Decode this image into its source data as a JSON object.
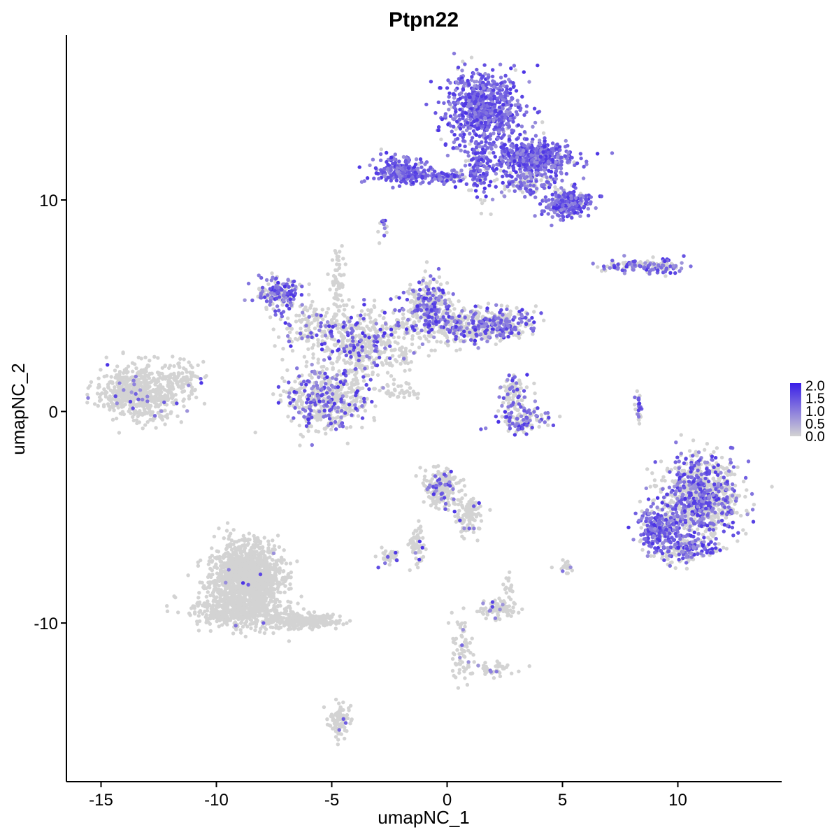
{
  "chart_data": {
    "type": "scatter",
    "title": "Ptpn22",
    "xlabel": "umapNC_1",
    "ylabel": "umapNC_2",
    "xlim": [
      -16.5,
      14.5
    ],
    "ylim": [
      -17.5,
      17.8
    ],
    "x_ticks": [
      -15,
      -10,
      -5,
      0,
      5,
      10
    ],
    "x_tick_labels": [
      "-15",
      "-10",
      "-5",
      "0",
      "5",
      "10"
    ],
    "y_ticks": [
      -10,
      0,
      10
    ],
    "y_tick_labels": [
      "-10",
      "0",
      "10"
    ],
    "grid": false,
    "legend": {
      "placement": "right",
      "type": "colorbar",
      "range": [
        0,
        2.1
      ],
      "ticks": [
        0.0,
        0.5,
        1.0,
        1.5,
        2.0
      ],
      "tick_labels": [
        "0.0",
        "0.5",
        "1.0",
        "1.5",
        "2.0"
      ],
      "low_color": "#d3d3d3",
      "high_color": "#3a1fe8"
    },
    "point_color_low": "#d3d3d3",
    "point_color_high": "#3a1fe8",
    "clusters": [
      {
        "cx": 1.6,
        "cy": 14.3,
        "sx": 1.0,
        "sy": 1.1,
        "n": 700,
        "expr": 0.95
      },
      {
        "cx": 3.7,
        "cy": 12.0,
        "sx": 1.1,
        "sy": 0.55,
        "n": 520,
        "expr": 0.9
      },
      {
        "cx": 5.2,
        "cy": 9.8,
        "sx": 0.65,
        "sy": 0.4,
        "n": 240,
        "expr": 0.85
      },
      {
        "cx": -2.0,
        "cy": 11.4,
        "sx": 0.7,
        "sy": 0.4,
        "n": 220,
        "expr": 0.95
      },
      {
        "cx": -0.2,
        "cy": 11.1,
        "sx": 1.0,
        "sy": 0.18,
        "n": 120,
        "expr": 0.85
      },
      {
        "cx": 1.4,
        "cy": 11.6,
        "sx": 0.35,
        "sy": 1.0,
        "n": 120,
        "expr": 0.7
      },
      {
        "cx": 3.5,
        "cy": 10.7,
        "sx": 0.8,
        "sy": 0.35,
        "n": 110,
        "expr": 0.5
      },
      {
        "cx": -2.8,
        "cy": 8.6,
        "sx": 0.15,
        "sy": 0.35,
        "n": 12,
        "expr": 0.5
      },
      {
        "cx": -7.3,
        "cy": 5.6,
        "sx": 0.55,
        "sy": 0.45,
        "n": 180,
        "expr": 0.55
      },
      {
        "cx": -5.5,
        "cy": 3.9,
        "sx": 1.2,
        "sy": 0.8,
        "n": 220,
        "expr": 0.28
      },
      {
        "cx": -4.8,
        "cy": 6.2,
        "sx": 0.2,
        "sy": 1.0,
        "n": 60,
        "expr": 0.0
      },
      {
        "cx": -3.0,
        "cy": 3.3,
        "sx": 1.2,
        "sy": 0.9,
        "n": 320,
        "expr": 0.15
      },
      {
        "cx": -0.8,
        "cy": 5.1,
        "sx": 0.7,
        "sy": 0.8,
        "n": 280,
        "expr": 0.45
      },
      {
        "cx": 0.5,
        "cy": 4.0,
        "sx": 1.2,
        "sy": 0.5,
        "n": 300,
        "expr": 0.3
      },
      {
        "cx": 2.4,
        "cy": 4.2,
        "sx": 0.9,
        "sy": 0.45,
        "n": 220,
        "expr": 0.45
      },
      {
        "cx": -5.2,
        "cy": 0.6,
        "sx": 1.1,
        "sy": 0.9,
        "n": 480,
        "expr": 0.3
      },
      {
        "cx": -4.0,
        "cy": 2.4,
        "sx": 0.5,
        "sy": 0.8,
        "n": 90,
        "expr": 0.2
      },
      {
        "cx": -2.0,
        "cy": 1.0,
        "sx": 0.7,
        "sy": 0.3,
        "n": 40,
        "expr": 0.0
      },
      {
        "cx": -13.3,
        "cy": 0.9,
        "sx": 1.1,
        "sy": 0.8,
        "n": 620,
        "expr": 0.03
      },
      {
        "cx": -11.5,
        "cy": 1.6,
        "sx": 0.6,
        "sy": 0.5,
        "n": 90,
        "expr": 0.03
      },
      {
        "cx": 2.9,
        "cy": 0.8,
        "sx": 0.35,
        "sy": 0.6,
        "n": 90,
        "expr": 0.35
      },
      {
        "cx": 3.3,
        "cy": -0.4,
        "sx": 0.7,
        "sy": 0.35,
        "n": 130,
        "expr": 0.45
      },
      {
        "cx": 8.1,
        "cy": 6.9,
        "sx": 0.9,
        "sy": 0.2,
        "n": 90,
        "expr": 0.5
      },
      {
        "cx": 9.5,
        "cy": 6.9,
        "sx": 0.4,
        "sy": 0.2,
        "n": 50,
        "expr": 0.6
      },
      {
        "cx": 8.3,
        "cy": 0.2,
        "sx": 0.12,
        "sy": 0.6,
        "n": 30,
        "expr": 0.5
      },
      {
        "cx": 11.0,
        "cy": -4.0,
        "sx": 1.0,
        "sy": 1.2,
        "n": 900,
        "expr": 0.4
      },
      {
        "cx": 9.2,
        "cy": -5.5,
        "sx": 0.55,
        "sy": 0.6,
        "n": 260,
        "expr": 0.7
      },
      {
        "cx": 10.3,
        "cy": -6.5,
        "sx": 0.9,
        "sy": 0.4,
        "n": 200,
        "expr": 0.55
      },
      {
        "cx": -0.3,
        "cy": -3.6,
        "sx": 0.45,
        "sy": 0.5,
        "n": 220,
        "expr": 0.12
      },
      {
        "cx": 0.9,
        "cy": -4.9,
        "sx": 0.35,
        "sy": 0.5,
        "n": 110,
        "expr": 0.05
      },
      {
        "cx": -1.3,
        "cy": -6.4,
        "sx": 0.25,
        "sy": 0.6,
        "n": 60,
        "expr": 0.05
      },
      {
        "cx": -2.4,
        "cy": -6.9,
        "sx": 0.35,
        "sy": 0.2,
        "n": 35,
        "expr": 0.2
      },
      {
        "cx": 2.2,
        "cy": -9.3,
        "sx": 0.5,
        "sy": 0.25,
        "n": 90,
        "expr": 0.1
      },
      {
        "cx": 2.7,
        "cy": -8.3,
        "sx": 0.15,
        "sy": 0.3,
        "n": 15,
        "expr": 0.0
      },
      {
        "cx": -8.7,
        "cy": -7.8,
        "sx": 0.9,
        "sy": 1.0,
        "n": 1400,
        "expr": 0.005
      },
      {
        "cx": -9.0,
        "cy": -9.4,
        "sx": 1.3,
        "sy": 0.5,
        "n": 450,
        "expr": 0.005
      },
      {
        "cx": -6.3,
        "cy": -9.9,
        "sx": 1.1,
        "sy": 0.25,
        "n": 250,
        "expr": 0.0
      },
      {
        "cx": -4.7,
        "cy": -14.6,
        "sx": 0.25,
        "sy": 0.55,
        "n": 90,
        "expr": 0.05
      },
      {
        "cx": 0.6,
        "cy": -11.2,
        "sx": 0.3,
        "sy": 1.1,
        "n": 60,
        "expr": 0.1
      },
      {
        "cx": 1.8,
        "cy": -12.2,
        "sx": 0.9,
        "sy": 0.2,
        "n": 50,
        "expr": 0.05
      },
      {
        "cx": 5.1,
        "cy": -7.4,
        "sx": 0.2,
        "sy": 0.2,
        "n": 25,
        "expr": 0.05
      }
    ]
  }
}
